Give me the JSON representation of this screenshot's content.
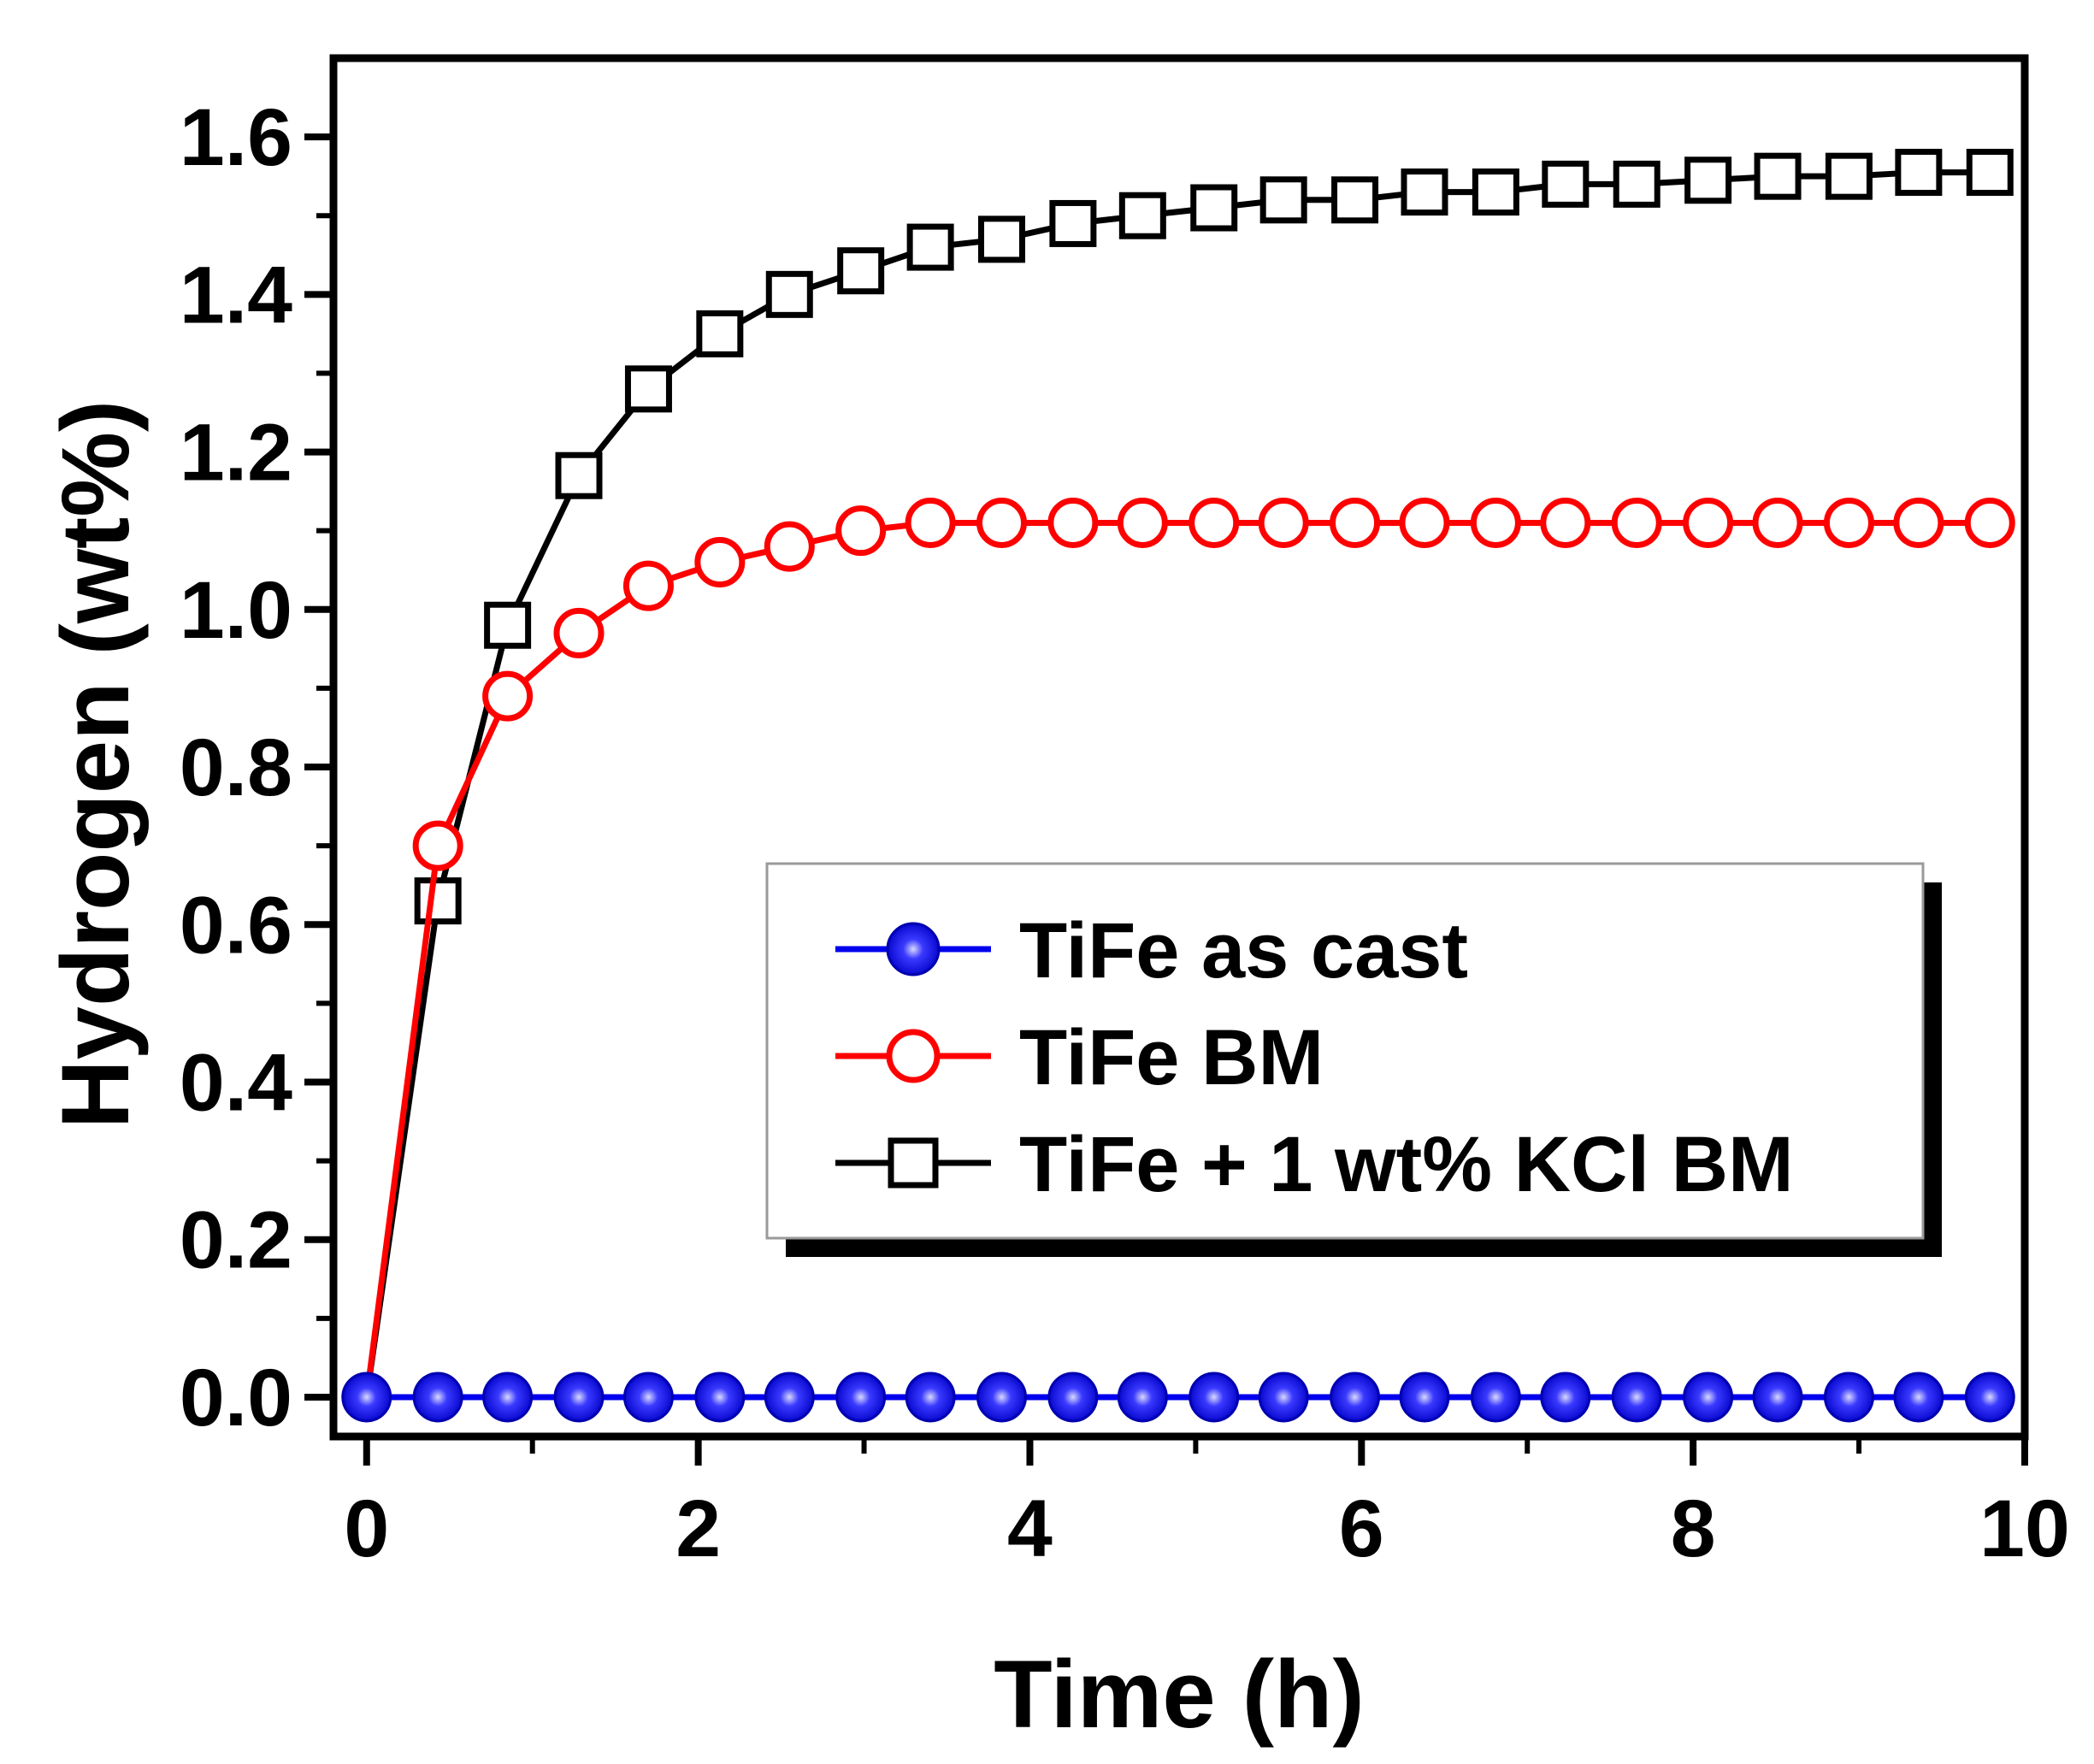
{
  "chart_data": {
    "type": "line",
    "title": "",
    "xlabel": "Time (h)",
    "ylabel": "Hydrogen (wt%)",
    "xlim": [
      -0.2,
      10.0
    ],
    "ylim": [
      -0.05,
      1.7
    ],
    "x_ticks": [
      0,
      2,
      4,
      6,
      8,
      10
    ],
    "x_tick_labels": [
      "0",
      "2",
      "4",
      "6",
      "8",
      "10"
    ],
    "y_ticks": [
      0.0,
      0.2,
      0.4,
      0.6,
      0.8,
      1.0,
      1.2,
      1.4,
      1.6
    ],
    "y_tick_labels": [
      "0.0",
      "0.2",
      "0.4",
      "0.6",
      "0.8",
      "1.0",
      "1.2",
      "1.4",
      "1.6"
    ],
    "grid": false,
    "legend_position": "center-right",
    "x": [
      0,
      0.43,
      0.85,
      1.28,
      1.7,
      2.13,
      2.55,
      2.98,
      3.4,
      3.83,
      4.26,
      4.68,
      5.11,
      5.53,
      5.96,
      6.38,
      6.81,
      7.23,
      7.66,
      8.09,
      8.51,
      8.94,
      9.36,
      9.79
    ],
    "series": [
      {
        "name": "TiFe as cast",
        "color": "#0000ee",
        "marker": "filled-circle",
        "values": [
          0,
          0,
          0,
          0,
          0,
          0,
          0,
          0,
          0,
          0,
          0,
          0,
          0,
          0,
          0,
          0,
          0,
          0,
          0,
          0,
          0,
          0,
          0,
          0
        ]
      },
      {
        "name": "TiFe BM",
        "color": "#ff0000",
        "marker": "open-circle",
        "values": [
          0,
          0.7,
          0.89,
          0.97,
          1.03,
          1.06,
          1.08,
          1.1,
          1.11,
          1.11,
          1.11,
          1.11,
          1.11,
          1.11,
          1.11,
          1.11,
          1.11,
          1.11,
          1.11,
          1.11,
          1.11,
          1.11,
          1.11,
          1.11
        ]
      },
      {
        "name": "TiFe + 1 wt% KCl BM",
        "color": "#000000",
        "marker": "open-square",
        "values": [
          0,
          0.63,
          0.98,
          1.17,
          1.28,
          1.35,
          1.4,
          1.43,
          1.46,
          1.47,
          1.49,
          1.5,
          1.51,
          1.52,
          1.52,
          1.53,
          1.53,
          1.54,
          1.54,
          1.545,
          1.55,
          1.55,
          1.555,
          1.555
        ]
      }
    ]
  }
}
